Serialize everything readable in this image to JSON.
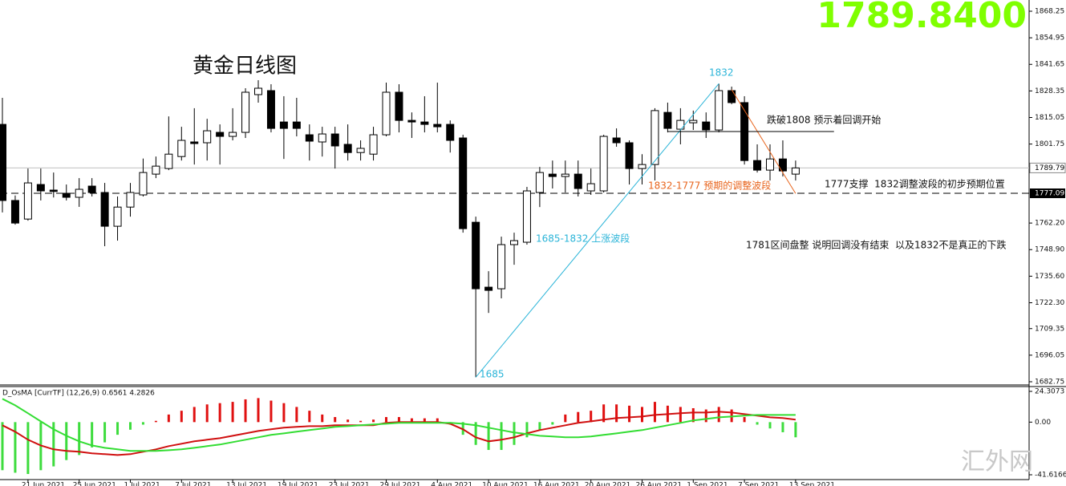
{
  "chart_data": {
    "type": "candlestick",
    "title": "黄金日线图",
    "price_display": "1789.8400",
    "watermark": "汇外网",
    "categories": [
      null,
      null,
      "21 Jun 2021",
      null,
      null,
      null,
      "25 Jun 2021",
      null,
      null,
      null,
      "1 Jul 2021",
      null,
      null,
      null,
      "7 Jul 2021",
      null,
      null,
      null,
      "13 Jul 2021",
      null,
      null,
      null,
      "19 Jul 2021",
      null,
      null,
      null,
      "23 Jul 2021",
      null,
      null,
      null,
      "29 Jul 2021",
      null,
      null,
      null,
      "4 Aug 2021",
      null,
      null,
      null,
      "10 Aug 2021",
      null,
      null,
      null,
      "16 Aug 2021",
      null,
      null,
      null,
      "20 Aug 2021",
      null,
      null,
      null,
      "26 Aug 2021",
      null,
      null,
      null,
      "1 Sep 2021",
      null,
      null,
      null,
      "7 Sep 2021",
      null,
      null,
      null,
      "13 Sep 2021"
    ],
    "open": [
      1811.6,
      1773.5,
      1764.2,
      1781.5,
      1778.7,
      1777.1,
      1775.1,
      1780.7,
      1777.5,
      1760.6,
      1770.2,
      1776.3,
      1786.7,
      1789.5,
      1795.5,
      1802.8,
      1802.4,
      1807.6,
      1805.6,
      1807.6,
      1826.5,
      1828.5,
      1812.8,
      1812.8,
      1806.4,
      1802.8,
      1806.8,
      1801.6,
      1797.5,
      1796.7,
      1806.4,
      1827.7,
      1813.6,
      1812.8,
      1811.6,
      1811.6,
      1804.8,
      1762.6,
      1730.1,
      1729.3,
      1751.4,
      1752.6,
      1777.5,
      1786.7,
      1785.5,
      1786.7,
      1778.3,
      1778.3,
      1804.8,
      1802.4,
      1789.5,
      1791.5,
      1817.6,
      1809.2,
      1812.4,
      1812.8,
      1808.8,
      1828.5,
      1822.5,
      1793.5,
      1788.7,
      1794.3,
      1786.7
    ],
    "high": [
      1824.9,
      1776.0,
      1789.5,
      1789.5,
      1787.5,
      1781.5,
      1784.7,
      1784.7,
      1782.3,
      1775.5,
      1782.3,
      1794.5,
      1795.5,
      1815.6,
      1810.4,
      1819.7,
      1814.4,
      1811.6,
      1819.7,
      1829.7,
      1833.7,
      1831.7,
      1825.7,
      1824.9,
      1811.6,
      1810.4,
      1810.4,
      1811.6,
      1803.6,
      1810.4,
      1832.5,
      1831.7,
      1817.6,
      1825.7,
      1832.5,
      1813.6,
      1806.4,
      1765.4,
      1738.1,
      1755.4,
      1757.4,
      1780.3,
      1790.3,
      1793.5,
      1793.5,
      1793.5,
      1789.5,
      1806.4,
      1809.6,
      1803.6,
      1796.7,
      1819.7,
      1822.5,
      1819.7,
      1818.5,
      1817.6,
      1832,
      1830.5,
      1825.7,
      1801.6,
      1801.6,
      1803.6,
      1793.5
    ],
    "low": [
      1767.5,
      1761.4,
      1763.4,
      1773.5,
      1775.0,
      1773.5,
      1770.3,
      1775.5,
      1750.6,
      1753.4,
      1765.4,
      1775.5,
      1784.7,
      1788.7,
      1793.5,
      1791.5,
      1793.5,
      1791.5,
      1803.6,
      1804.8,
      1822.5,
      1807.6,
      1794.3,
      1805.6,
      1793.5,
      1795.5,
      1789.5,
      1793.5,
      1793.5,
      1793.5,
      1805.6,
      1807.6,
      1804.8,
      1807.6,
      1807.6,
      1797.5,
      1757.4,
      1685,
      1717.2,
      1724.5,
      1741.3,
      1751.4,
      1770.2,
      1779.5,
      1777.5,
      1775.5,
      1776.3,
      1777.5,
      1800.4,
      1781.5,
      1781.5,
      1783.5,
      1807.6,
      1801.6,
      1808.8,
      1804.8,
      1807.6,
      1821.7,
      1791.5,
      1787.5,
      1783.5,
      1785.5,
      1783.5
    ],
    "close": [
      1773.5,
      1762.2,
      1782.3,
      1778.3,
      1778.0,
      1775.1,
      1779.1,
      1777.5,
      1760.6,
      1770.2,
      1777.5,
      1787.5,
      1790.7,
      1796.7,
      1803.6,
      1802.0,
      1808.4,
      1805.6,
      1807.6,
      1827.7,
      1829.7,
      1809.6,
      1809.6,
      1809.6,
      1803.2,
      1806.8,
      1800.8,
      1797.5,
      1799.6,
      1806.4,
      1827.7,
      1813.6,
      1812.8,
      1811.6,
      1810.4,
      1803.6,
      1759.4,
      1729.3,
      1728.5,
      1751.4,
      1753.4,
      1778.3,
      1787.5,
      1785.5,
      1786.7,
      1779.5,
      1781.9,
      1805.6,
      1802.4,
      1789.5,
      1791.5,
      1818.5,
      1809.6,
      1813.6,
      1813.6,
      1808.8,
      1828.5,
      1822.5,
      1793.5,
      1788.7,
      1794.3,
      1788.3,
      1789.8
    ],
    "up_color": "#ffffff",
    "down_color": "#000000",
    "ylim": [
      1682.75,
      1868.25
    ],
    "yticks": [
      1868.25,
      1854.95,
      1841.65,
      1828.35,
      1815.05,
      1801.75,
      {
        "value": 1762.2,
        "label": "1762.20"
      },
      {
        "value": 1748.9,
        "label": "1748.90"
      },
      {
        "value": 1735.6,
        "label": "1735.60"
      },
      {
        "value": 1722.3,
        "label": "1722.30"
      },
      1709.35,
      1696.05,
      1682.75
    ],
    "current_price": 1789.79,
    "support_level": 1777.09,
    "trendlines": [
      {
        "x": [
          37,
          56
        ],
        "y": [
          1685,
          1832
        ],
        "color": "#2ab4d8"
      },
      {
        "x": [
          57,
          62
        ],
        "y": [
          1829,
          1777
        ],
        "color": "#e8641c"
      },
      {
        "x": [
          52,
          65
        ],
        "y": [
          1808,
          1808
        ],
        "color": "#000000"
      }
    ],
    "annotations": [
      "1832",
      "1685",
      "1685-1832 上涨波段",
      "1832-1777 预期的调整波段",
      "跌破1808 预示着回调开始",
      "1777支撑  1832调整波段的初步预期位置",
      "1781区间盘整 说明回调没有结束  以及1832不是真正的下跌"
    ],
    "indicator": {
      "type": "bar",
      "title": "D_OsMA [CurrTF] (12,26,9) 0.6561 4.2826",
      "positive_color": "#e01010",
      "negative_color": "#3ddc3d",
      "values": [
        -38,
        -40,
        -41,
        -38,
        -35,
        -30,
        -26,
        -20,
        -16,
        -10,
        -6,
        -2,
        1,
        6,
        9,
        12,
        14,
        15,
        16,
        18,
        19,
        17,
        15,
        12,
        9,
        6,
        4,
        2,
        1,
        2,
        4,
        4,
        3,
        3,
        3,
        -2,
        -10,
        -18,
        -22,
        -22,
        -18,
        -12,
        -6,
        -2,
        6,
        8,
        9,
        14,
        14,
        13,
        12,
        16,
        13,
        12,
        11,
        10,
        12,
        10,
        4,
        -2,
        -5,
        -8,
        -12
      ],
      "lines": [
        {
          "color": "#d01010",
          "values": [
            -2.5,
            -7.6,
            -13.9,
            -18.4,
            -21.5,
            -22.8,
            -23.4,
            -24.7,
            -25.3,
            -26.0,
            -25.3,
            -23.4,
            -21.5,
            -19.0,
            -17.1,
            -15.2,
            -13.9,
            -12.7,
            -10.8,
            -8.9,
            -7.0,
            -5.7,
            -4.4,
            -3.8,
            -3.2,
            -3.2,
            -2.5,
            -2.5,
            -2.5,
            -2.5,
            -0.6,
            0,
            0,
            0,
            0,
            -1.3,
            -5.7,
            -12.0,
            -15.2,
            -13.9,
            -12.0,
            -8.9,
            -6.3,
            -4.4,
            -2.5,
            -0.6,
            0.6,
            1.9,
            3.2,
            3.8,
            4.4,
            5.7,
            6.3,
            7.0,
            7.6,
            7.6,
            8.2,
            7.6,
            6.3,
            5.1,
            3.8,
            3.2,
            1.9
          ]
        },
        {
          "color": "#33dd33",
          "values": [
            18.4,
            13.3,
            7.0,
            0.6,
            -5.7,
            -10.8,
            -15.2,
            -18.4,
            -20.3,
            -21.5,
            -22.8,
            -22.8,
            -22.8,
            -22.2,
            -21.5,
            -20.3,
            -19.0,
            -17.7,
            -15.8,
            -13.9,
            -12.0,
            -10.1,
            -8.9,
            -7.6,
            -6.3,
            -5.1,
            -3.8,
            -3.2,
            -2.5,
            -1.9,
            -1.3,
            -0.6,
            -0.6,
            -0.6,
            -0.6,
            -0.6,
            -1.3,
            -2.5,
            -4.4,
            -6.3,
            -8.2,
            -9.5,
            -10.8,
            -11.4,
            -12.0,
            -12.0,
            -11.4,
            -10.1,
            -8.9,
            -7.6,
            -6.3,
            -4.4,
            -2.5,
            -0.6,
            1.3,
            2.5,
            3.8,
            4.4,
            5.1,
            5.7,
            5.7,
            5.7,
            5.7
          ]
        }
      ],
      "ylim": [
        -41.6166,
        24.3073
      ],
      "yticks": [
        24.3073,
        {
          "value": 0,
          "label": "0.00"
        },
        -41.6166
      ]
    }
  }
}
